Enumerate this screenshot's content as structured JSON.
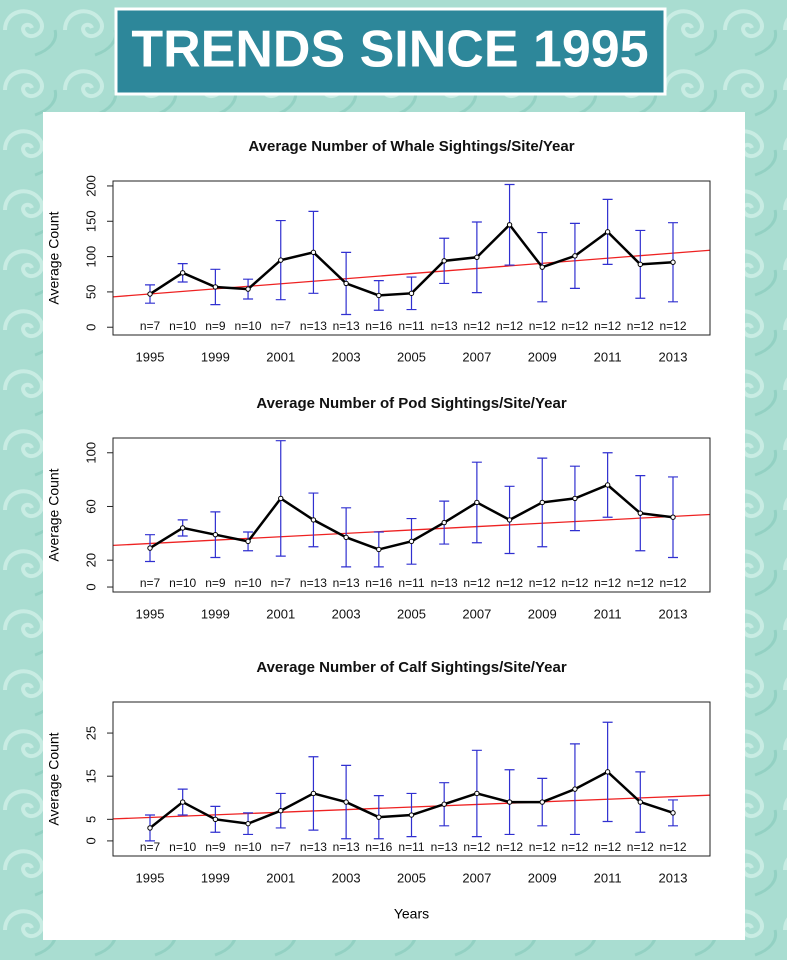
{
  "banner": "TRENDS SINCE 1995",
  "chart_data": [
    {
      "type": "line",
      "title": "Average Number of Whale Sightings/Site/Year",
      "ylabel": "Average Count",
      "categories": [
        "1995",
        null,
        "1999",
        null,
        "2001",
        null,
        "2003",
        null,
        "2005",
        null,
        "2007",
        null,
        "2009",
        null,
        "2011",
        null,
        "2013"
      ],
      "values": [
        47,
        77,
        57,
        54,
        95,
        106,
        62,
        45,
        48,
        94,
        99,
        145,
        85,
        101,
        135,
        89,
        92
      ],
      "errors": [
        13,
        13,
        25,
        14,
        56,
        58,
        44,
        21,
        23,
        32,
        50,
        57,
        49,
        46,
        46,
        48,
        56
      ],
      "n_labels": [
        "n=7",
        "n=10",
        "n=9",
        "n=10",
        "n=7",
        "n=13",
        "n=13",
        "n=16",
        "n=11",
        "n=13",
        "n=12",
        "n=12",
        "n=12",
        "n=12",
        "n=12",
        "n=12",
        "n=12"
      ],
      "color": "#000000",
      "error_color": "#3030d0",
      "trend": {
        "color": "#ee2222",
        "values": [
          43,
          109
        ]
      },
      "ylim": [
        -11,
        207
      ],
      "yticks": [
        0,
        50,
        100,
        150,
        200
      ]
    },
    {
      "type": "line",
      "title": "Average Number of Pod Sightings/Site/Year",
      "ylabel": "Average Count",
      "categories": [
        "1995",
        null,
        "1999",
        null,
        "2001",
        null,
        "2003",
        null,
        "2005",
        null,
        "2007",
        null,
        "2009",
        null,
        "2011",
        null,
        "2013"
      ],
      "values": [
        29,
        44,
        39,
        34,
        66,
        50,
        37,
        28,
        34,
        48,
        63,
        50,
        63,
        66,
        76,
        55,
        52
      ],
      "errors": [
        10,
        6,
        17,
        7,
        43,
        20,
        22,
        13,
        17,
        16,
        30,
        25,
        33,
        24,
        24,
        28,
        30
      ],
      "n_labels": [
        "n=7",
        "n=10",
        "n=9",
        "n=10",
        "n=7",
        "n=13",
        "n=13",
        "n=16",
        "n=11",
        "n=13",
        "n=12",
        "n=12",
        "n=12",
        "n=12",
        "n=12",
        "n=12",
        "n=12"
      ],
      "color": "#000000",
      "error_color": "#3030d0",
      "trend": {
        "color": "#ee2222",
        "values": [
          31,
          54
        ]
      },
      "ylim": [
        -3.7,
        111
      ],
      "yticks": [
        0,
        20,
        60,
        100
      ]
    },
    {
      "type": "line",
      "title": "Average Number of Calf Sightings/Site/Year",
      "ylabel": "Average Count",
      "xlabel": "Years",
      "categories": [
        "1995",
        null,
        "1999",
        null,
        "2001",
        null,
        "2003",
        null,
        "2005",
        null,
        "2007",
        null,
        "2009",
        null,
        "2011",
        null,
        "2013"
      ],
      "values": [
        3,
        9,
        5,
        4,
        7,
        11,
        9,
        5.5,
        6,
        8.5,
        11,
        9,
        9,
        12,
        16,
        9,
        6.5
      ],
      "errors": [
        3,
        3,
        3,
        2.5,
        4,
        8.5,
        8.5,
        5,
        5,
        5,
        10,
        7.5,
        5.5,
        10.5,
        11.5,
        7,
        3
      ],
      "n_labels": [
        "n=7",
        "n=10",
        "n=9",
        "n=10",
        "n=7",
        "n=13",
        "n=13",
        "n=16",
        "n=11",
        "n=13",
        "n=12",
        "n=12",
        "n=12",
        "n=12",
        "n=12",
        "n=12",
        "n=12"
      ],
      "color": "#000000",
      "error_color": "#3030d0",
      "trend": {
        "color": "#ee2222",
        "values": [
          5.1,
          10.6
        ]
      },
      "ylim": [
        -3.5,
        32.2
      ],
      "yticks": [
        0,
        5,
        15,
        25
      ]
    }
  ]
}
